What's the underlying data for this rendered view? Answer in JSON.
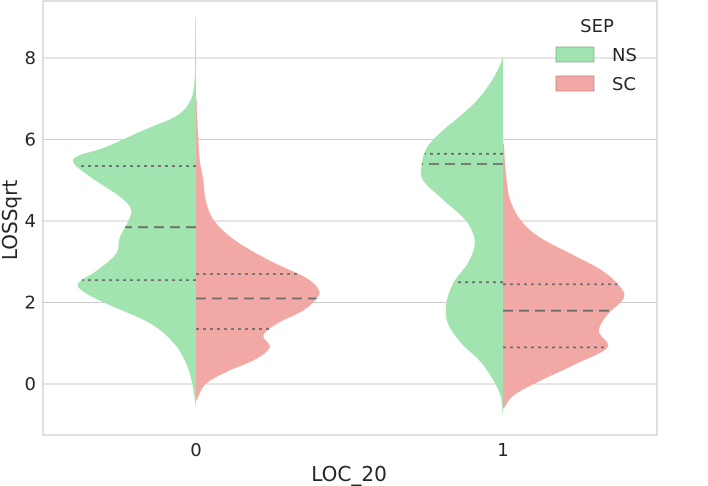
{
  "chart_data": {
    "type": "violin",
    "split": true,
    "xlabel": "LOC_20",
    "ylabel": "LOSSqrt",
    "categories": [
      "0",
      "1"
    ],
    "ylim": [
      -1.25,
      9.4
    ],
    "yticks": [
      0,
      2,
      4,
      6,
      8
    ],
    "grid": true,
    "legend": {
      "title": "SEP",
      "placement": "top-right",
      "entries": [
        {
          "name": "NS",
          "color": "#a1e4b0"
        },
        {
          "name": "SC",
          "color": "#f2a8a5"
        }
      ]
    },
    "series": [
      {
        "name": "NS",
        "side": "left",
        "color": "#a1e4b0",
        "violins": [
          {
            "category": "0",
            "quartiles": {
              "q1": 2.55,
              "median": 3.85,
              "q3": 5.35
            },
            "profile": [
              [
                -0.55,
                0.002
              ],
              [
                0,
                0.03
              ],
              [
                0.5,
                0.08
              ],
              [
                1,
                0.18
              ],
              [
                1.5,
                0.38
              ],
              [
                2,
                0.75
              ],
              [
                2.3,
                0.93
              ],
              [
                2.5,
                0.95
              ],
              [
                2.8,
                0.8
              ],
              [
                3.2,
                0.65
              ],
              [
                3.6,
                0.62
              ],
              [
                4,
                0.55
              ],
              [
                4.3,
                0.53
              ],
              [
                4.6,
                0.62
              ],
              [
                5,
                0.82
              ],
              [
                5.4,
                0.99
              ],
              [
                5.6,
                0.96
              ],
              [
                5.8,
                0.75
              ],
              [
                6.2,
                0.45
              ],
              [
                6.6,
                0.15
              ],
              [
                7,
                0.04
              ],
              [
                7.5,
                0.01
              ],
              [
                8,
                0.008
              ],
              [
                9,
                0.005
              ]
            ]
          },
          {
            "category": "1",
            "quartiles": {
              "q1": 2.5,
              "median": 5.4,
              "q3": 5.65
            },
            "profile": [
              [
                -0.75,
                0.002
              ],
              [
                -0.2,
                0.03
              ],
              [
                0.5,
                0.17
              ],
              [
                1,
                0.34
              ],
              [
                1.5,
                0.45
              ],
              [
                2,
                0.46
              ],
              [
                2.5,
                0.4
              ],
              [
                3,
                0.28
              ],
              [
                3.5,
                0.23
              ],
              [
                4,
                0.3
              ],
              [
                4.5,
                0.48
              ],
              [
                5,
                0.65
              ],
              [
                5.4,
                0.66
              ],
              [
                5.8,
                0.62
              ],
              [
                6.2,
                0.5
              ],
              [
                6.6,
                0.34
              ],
              [
                7,
                0.2
              ],
              [
                7.5,
                0.08
              ],
              [
                7.9,
                0.015
              ],
              [
                8,
                0.01
              ]
            ]
          }
        ]
      },
      {
        "name": "SC",
        "side": "right",
        "color": "#f2a8a5",
        "violins": [
          {
            "category": "0",
            "quartiles": {
              "q1": 1.35,
              "median": 2.1,
              "q3": 2.7
            },
            "profile": [
              [
                -0.4,
                0.005
              ],
              [
                0,
                0.08
              ],
              [
                0.3,
                0.25
              ],
              [
                0.6,
                0.48
              ],
              [
                0.9,
                0.6
              ],
              [
                1.2,
                0.55
              ],
              [
                1.5,
                0.67
              ],
              [
                1.8,
                0.87
              ],
              [
                2.1,
                0.98
              ],
              [
                2.3,
                1.0
              ],
              [
                2.6,
                0.9
              ],
              [
                3,
                0.62
              ],
              [
                3.5,
                0.33
              ],
              [
                4,
                0.15
              ],
              [
                4.5,
                0.08
              ],
              [
                5,
                0.06
              ],
              [
                5.5,
                0.03
              ],
              [
                6,
                0.02
              ],
              [
                6.5,
                0.01
              ],
              [
                7,
                0.005
              ]
            ]
          },
          {
            "category": "1",
            "quartiles": {
              "q1": 0.9,
              "median": 1.8,
              "q3": 2.45
            },
            "profile": [
              [
                -0.6,
                0.008
              ],
              [
                -0.3,
                0.08
              ],
              [
                0,
                0.25
              ],
              [
                0.5,
                0.6
              ],
              [
                0.9,
                0.85
              ],
              [
                1.3,
                0.78
              ],
              [
                1.7,
                0.85
              ],
              [
                2.1,
                0.98
              ],
              [
                2.4,
                0.95
              ],
              [
                2.8,
                0.8
              ],
              [
                3.2,
                0.55
              ],
              [
                3.6,
                0.3
              ],
              [
                4,
                0.15
              ],
              [
                4.5,
                0.06
              ],
              [
                5,
                0.03
              ],
              [
                5.5,
                0.015
              ],
              [
                5.9,
                0.008
              ]
            ]
          }
        ]
      }
    ]
  }
}
